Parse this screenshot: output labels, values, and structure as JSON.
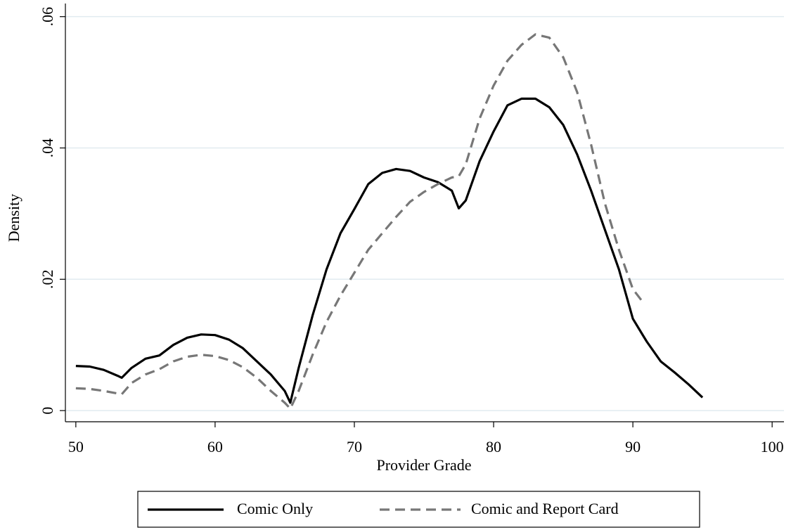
{
  "chart_data": {
    "type": "line",
    "x_label": "Provider Grade",
    "y_label": "Density",
    "x": [
      50,
      51,
      52,
      53,
      53.3,
      54,
      55,
      56,
      57,
      58,
      59,
      60,
      61,
      62,
      63,
      64,
      65,
      65.4,
      66,
      67,
      68,
      69,
      70,
      71,
      72,
      73,
      74,
      75,
      76,
      77,
      77.5,
      78,
      79,
      80,
      81,
      82,
      83,
      84,
      85,
      86,
      87,
      88,
      89,
      90,
      90.8,
      91,
      92,
      93,
      94,
      95
    ],
    "series": [
      {
        "name": "Comic Only",
        "color": "#000000",
        "dash": false,
        "values": [
          0.0068,
          0.0067,
          0.0062,
          0.0053,
          0.005,
          0.0065,
          0.0079,
          0.0084,
          0.01,
          0.0111,
          0.0116,
          0.0115,
          0.0108,
          0.0095,
          0.0075,
          0.0055,
          0.003,
          0.0012,
          0.0065,
          0.0145,
          0.0215,
          0.027,
          0.0307,
          0.0345,
          0.0362,
          0.0368,
          0.0365,
          0.0355,
          0.0348,
          0.0335,
          0.0308,
          0.032,
          0.038,
          0.0425,
          0.0465,
          0.0475,
          0.0475,
          0.0462,
          0.0435,
          0.039,
          0.0335,
          0.0275,
          0.0215,
          0.014,
          0.0112,
          0.0105,
          0.0075,
          0.0058,
          0.004,
          0.002
        ]
      },
      {
        "name": "Comic and Report Card",
        "color": "#777777",
        "dash": true,
        "values": [
          0.0034,
          0.0033,
          0.003,
          0.0026,
          0.0025,
          0.0042,
          0.0055,
          0.0063,
          0.0075,
          0.0082,
          0.0085,
          0.0083,
          0.0077,
          0.0066,
          0.005,
          0.003,
          0.0012,
          0.0003,
          0.003,
          0.0085,
          0.0135,
          0.0175,
          0.021,
          0.0245,
          0.027,
          0.0295,
          0.0318,
          0.0333,
          0.0345,
          0.0355,
          0.0357,
          0.0375,
          0.0445,
          0.0495,
          0.0533,
          0.0557,
          0.0573,
          0.0568,
          0.0538,
          0.0485,
          0.0405,
          0.0315,
          0.0245,
          0.0185,
          0.0163,
          null,
          null,
          null,
          null,
          null
        ]
      }
    ],
    "xlim": [
      49.25,
      100.85
    ],
    "ylim": [
      -0.0017,
      0.062
    ],
    "xticks": [
      50,
      60,
      70,
      80,
      90,
      100
    ],
    "yticks": [
      0,
      {
        "value": 0.02,
        "label": ".02"
      },
      {
        "value": 0.04,
        "label": ".04"
      },
      {
        "value": 0.06,
        "label": ".06"
      }
    ],
    "grid": true,
    "legend": "bottom"
  }
}
